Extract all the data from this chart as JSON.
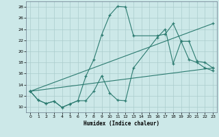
{
  "xlabel": "Humidex (Indice chaleur)",
  "background_color": "#cce8e8",
  "grid_color": "#aacccc",
  "line_color": "#2a7a6f",
  "xlim": [
    -0.5,
    23.5
  ],
  "ylim": [
    9,
    29
  ],
  "xticks": [
    0,
    1,
    2,
    3,
    4,
    5,
    6,
    7,
    8,
    9,
    10,
    11,
    12,
    13,
    14,
    15,
    16,
    17,
    18,
    19,
    20,
    21,
    22,
    23
  ],
  "yticks": [
    10,
    12,
    14,
    16,
    18,
    20,
    22,
    24,
    26,
    28
  ],
  "series": [
    {
      "x": [
        0,
        1,
        2,
        3,
        4,
        5,
        6,
        7,
        8,
        9,
        10,
        11,
        12,
        13,
        16,
        17,
        18,
        19,
        20,
        21,
        22,
        23
      ],
      "y": [
        12.8,
        11.2,
        10.6,
        11.0,
        9.9,
        10.5,
        11.1,
        11.1,
        12.8,
        15.6,
        12.5,
        11.2,
        11.1,
        17.0,
        22.5,
        24.0,
        17.8,
        21.8,
        21.8,
        18.2,
        18.0,
        17.0
      ]
    },
    {
      "x": [
        0,
        1,
        2,
        3,
        4,
        5,
        6,
        7,
        8,
        9,
        10,
        11,
        12,
        13,
        16,
        17,
        18,
        19,
        20,
        21,
        22,
        23
      ],
      "y": [
        12.8,
        11.2,
        10.6,
        11.0,
        9.9,
        10.5,
        11.1,
        15.5,
        18.5,
        23.0,
        26.5,
        28.1,
        28.0,
        22.8,
        22.8,
        23.1,
        25.0,
        21.8,
        18.5,
        18.0,
        17.0,
        16.5
      ]
    },
    {
      "x": [
        0,
        23
      ],
      "y": [
        12.8,
        25.0
      ]
    },
    {
      "x": [
        0,
        23
      ],
      "y": [
        12.8,
        17.0
      ]
    }
  ]
}
